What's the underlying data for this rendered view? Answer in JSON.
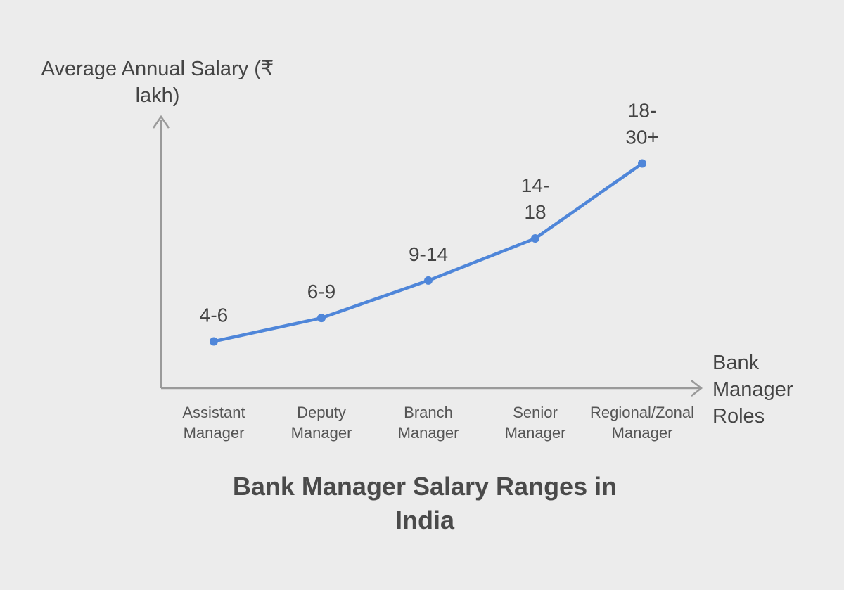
{
  "chart_data": {
    "type": "line",
    "title": "Bank Manager Salary Ranges in India",
    "xlabel": "Bank Manager Roles",
    "ylabel": "Average Annual Salary (₹ lakh)",
    "categories": [
      "Assistant Manager",
      "Deputy Manager",
      "Branch Manager",
      "Senior Manager",
      "Regional/Zonal Manager"
    ],
    "series": [
      {
        "values": [
          5,
          7.5,
          11.5,
          16,
          24
        ],
        "labels": [
          "4-6",
          "6-9",
          "9-14",
          "14-18",
          "18-30+"
        ]
      }
    ],
    "ylim": [
      0,
      29
    ],
    "grid": false,
    "legend": "none",
    "colors": {
      "line": "#4f86d9",
      "axis": "#9a9a9a"
    }
  }
}
